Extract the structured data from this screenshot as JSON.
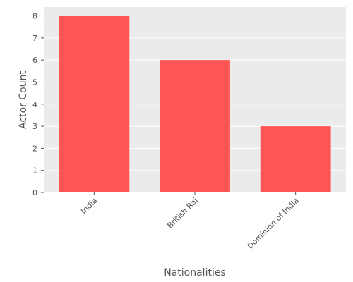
{
  "chart_data": {
    "type": "bar",
    "title": "",
    "xlabel": "Nationalities",
    "ylabel": "Actor Count",
    "categories": [
      "India",
      "British Raj",
      "Dominion of India"
    ],
    "values": [
      8,
      6,
      3
    ],
    "ylim": [
      0,
      8.4
    ],
    "yticks": [
      0,
      1,
      2,
      3,
      4,
      5,
      6,
      7,
      8
    ],
    "grid": true,
    "bar_color": "#ff5555",
    "background_color": "#ebebeb",
    "grid_color": "#ffffff"
  }
}
